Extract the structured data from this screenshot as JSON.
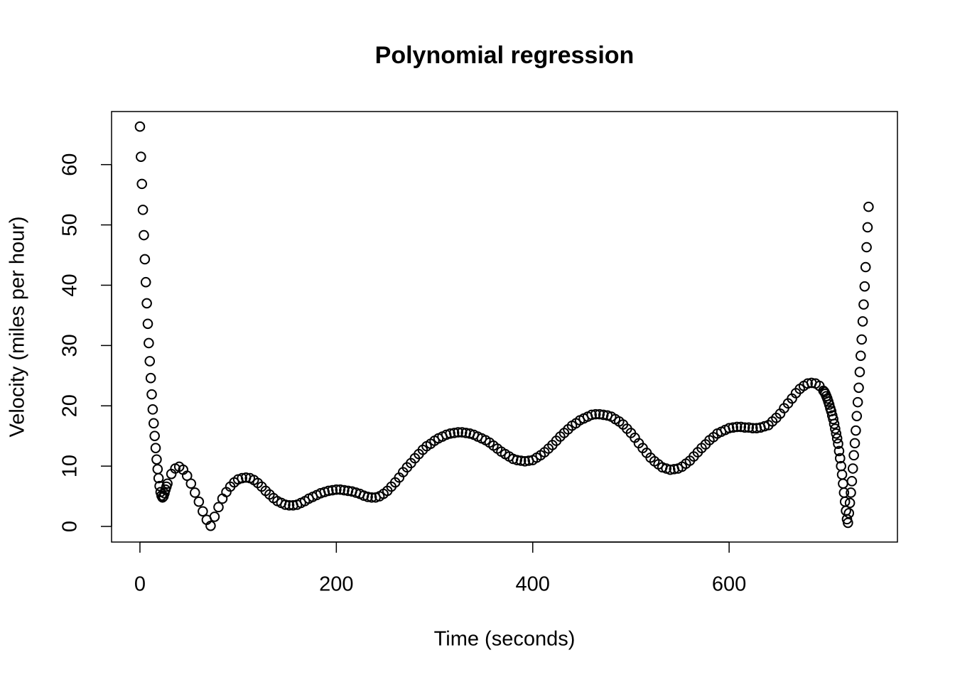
{
  "chart_data": {
    "type": "scatter",
    "title": "Polynomial regression",
    "x_label": "Time (seconds)",
    "y_label": "Velocity (miles per hour)",
    "color": "#000000",
    "xlim": [
      -28.9,
      771.4
    ],
    "ylim": [
      -2.59,
      68.8
    ],
    "xticks": [
      0,
      200,
      400,
      600
    ],
    "yticks": [
      0,
      10,
      20,
      30,
      40,
      50,
      60
    ],
    "x": [
      0,
      1,
      2,
      3,
      4,
      5,
      6,
      7,
      8,
      9,
      10,
      11,
      12,
      13,
      14,
      15,
      16,
      17,
      18,
      19,
      20,
      21,
      22,
      23,
      24,
      25,
      26,
      27,
      28,
      32,
      36,
      40,
      44,
      48,
      52,
      56,
      60,
      64,
      68,
      72,
      76,
      80,
      84,
      88,
      92,
      96,
      100,
      104,
      108,
      112,
      116,
      120,
      124,
      128,
      132,
      136,
      140,
      144,
      148,
      152,
      156,
      160,
      164,
      168,
      172,
      176,
      180,
      184,
      188,
      192,
      196,
      200,
      204,
      208,
      212,
      216,
      220,
      224,
      228,
      232,
      236,
      240,
      244,
      248,
      252,
      256,
      260,
      264,
      268,
      272,
      276,
      280,
      284,
      288,
      292,
      296,
      300,
      304,
      308,
      312,
      316,
      320,
      324,
      328,
      332,
      336,
      340,
      344,
      348,
      352,
      356,
      360,
      364,
      368,
      372,
      376,
      380,
      384,
      388,
      392,
      396,
      400,
      404,
      408,
      412,
      416,
      420,
      424,
      428,
      432,
      436,
      440,
      444,
      448,
      452,
      456,
      460,
      464,
      468,
      472,
      476,
      480,
      484,
      488,
      492,
      496,
      500,
      504,
      508,
      512,
      516,
      520,
      524,
      528,
      532,
      536,
      540,
      544,
      548,
      552,
      556,
      560,
      564,
      568,
      572,
      576,
      580,
      584,
      588,
      592,
      596,
      600,
      604,
      608,
      612,
      616,
      620,
      624,
      628,
      632,
      636,
      640,
      644,
      648,
      652,
      656,
      660,
      664,
      668,
      672,
      676,
      680,
      684,
      688,
      692,
      696,
      697,
      698,
      699,
      700,
      701,
      702,
      703,
      704,
      705,
      706,
      707,
      708,
      709,
      710,
      711,
      712,
      713,
      714,
      715,
      716,
      717,
      718,
      719,
      720,
      721,
      722,
      723,
      724,
      725,
      726,
      727,
      728,
      729,
      730,
      731,
      732,
      733,
      734,
      735,
      736,
      737,
      738,
      739,
      740,
      741,
      742
    ],
    "values": [
      66.3,
      61.3,
      56.8,
      52.5,
      48.3,
      44.3,
      40.5,
      37,
      33.6,
      30.4,
      27.4,
      24.6,
      21.9,
      19.4,
      17.1,
      15,
      13,
      11.1,
      9.5,
      8,
      6.7,
      5.7,
      5.1,
      4.8,
      5.0,
      5.5,
      6.1,
      6.6,
      7.1,
      8.7,
      9.6,
      9.9,
      9.4,
      8.4,
      7.1,
      5.6,
      4.1,
      2.5,
      1.1,
      0.1,
      1.6,
      3.2,
      4.6,
      5.7,
      6.6,
      7.3,
      7.8,
      8.0,
      8.1,
      8.0,
      7.7,
      7.2,
      6.6,
      5.9,
      5.3,
      4.7,
      4.2,
      3.9,
      3.6,
      3.5,
      3.5,
      3.6,
      3.9,
      4.2,
      4.6,
      4.9,
      5.2,
      5.5,
      5.7,
      5.9,
      6.0,
      6.1,
      6.1,
      6.0,
      5.9,
      5.8,
      5.6,
      5.4,
      5.1,
      4.9,
      4.8,
      4.8,
      5.0,
      5.4,
      5.9,
      6.6,
      7.3,
      8.1,
      9.0,
      9.8,
      10.5,
      11.3,
      12.0,
      12.7,
      13.3,
      13.7,
      14.2,
      14.6,
      14.9,
      15.2,
      15.4,
      15.5,
      15.6,
      15.6,
      15.5,
      15.4,
      15.2,
      14.9,
      14.6,
      14.3,
      13.9,
      13.4,
      12.9,
      12.4,
      12.0,
      11.6,
      11.2,
      11.0,
      10.9,
      10.8,
      10.9,
      11.0,
      11.4,
      11.8,
      12.3,
      12.9,
      13.5,
      14.2,
      14.9,
      15.5,
      16.1,
      16.7,
      17.1,
      17.6,
      17.9,
      18.2,
      18.5,
      18.6,
      18.6,
      18.5,
      18.4,
      18.2,
      17.8,
      17.4,
      16.9,
      16.2,
      15.5,
      14.7,
      13.8,
      13.0,
      12.2,
      11.4,
      10.8,
      10.3,
      9.8,
      9.6,
      9.4,
      9.5,
      9.6,
      9.9,
      10.4,
      10.9,
      11.6,
      12.3,
      13.0,
      13.6,
      14.3,
      14.8,
      15.4,
      15.7,
      16.0,
      16.3,
      16.4,
      16.5,
      16.5,
      16.4,
      16.4,
      16.3,
      16.3,
      16.4,
      16.6,
      16.8,
      17.4,
      18.0,
      18.7,
      19.6,
      20.4,
      21.2,
      22.1,
      22.8,
      23.3,
      23.7,
      23.8,
      23.7,
      23.3,
      22.5,
      22.3,
      22.0,
      21.6,
      21.2,
      20.7,
      20.2,
      19.6,
      19.1,
      18.4,
      17.8,
      17.0,
      16.2,
      15.4,
      14.6,
      13.7,
      12.5,
      11.3,
      10.0,
      8.6,
      7.1,
      5.6,
      4.1,
      2.6,
      1.2,
      0.6,
      2.2,
      3.9,
      5.6,
      7.5,
      9.6,
      11.8,
      13.8,
      15.9,
      18.3,
      20.6,
      23.0,
      25.6,
      28.3,
      31.0,
      34.0,
      36.8,
      39.8,
      43.0,
      46.3,
      49.6,
      53.0
    ]
  }
}
